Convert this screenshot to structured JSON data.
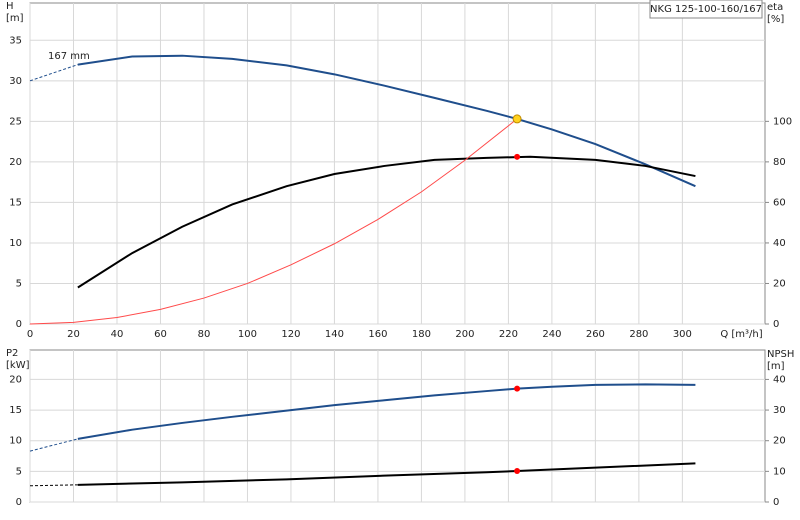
{
  "chart_data": [
    {
      "type": "line",
      "title": "NKG 125-100-160/167",
      "annotation": "167 mm",
      "y_label": [
        "H",
        "[m]"
      ],
      "y2_label": [
        "eta",
        "[%]"
      ],
      "x_label": "Q [m³/h]",
      "xlim": [
        0,
        338
      ],
      "xticks": [
        0,
        20,
        40,
        60,
        80,
        100,
        120,
        140,
        160,
        180,
        200,
        220,
        240,
        260,
        280,
        300
      ],
      "ylim": [
        0,
        39.6
      ],
      "yticks": [
        0,
        5,
        10,
        15,
        20,
        25,
        30,
        35
      ],
      "y2lim": [
        0,
        158.4
      ],
      "y2ticks": [
        0,
        20,
        40,
        60,
        80,
        100
      ],
      "grid": true,
      "series": [
        {
          "color": "#1f4e8c",
          "dash": true,
          "width": 1,
          "x": [
            0,
            22
          ],
          "values": [
            30.0,
            32.0
          ]
        },
        {
          "color": "#1f4e8c",
          "width": 2,
          "x": [
            22,
            47,
            70,
            93,
            118,
            140,
            163,
            186,
            210,
            224,
            240,
            260,
            283,
            306
          ],
          "values": [
            32.0,
            33.0,
            33.1,
            32.7,
            31.9,
            30.8,
            29.4,
            27.9,
            26.3,
            25.3,
            24.0,
            22.2,
            19.7,
            17.0
          ]
        },
        {
          "color": "#000000",
          "width": 2,
          "axis": "y2",
          "x": [
            22,
            47,
            70,
            93,
            118,
            140,
            163,
            186,
            210,
            230,
            260,
            283,
            306
          ],
          "values": [
            18,
            35,
            48,
            59,
            68,
            74,
            78,
            81,
            82,
            82.5,
            81,
            78,
            73
          ]
        },
        {
          "color": "#ff4a4a",
          "width": 1,
          "x": [
            0,
            20,
            40,
            60,
            80,
            100,
            120,
            140,
            160,
            180,
            200,
            224
          ],
          "values": [
            0,
            0.2,
            0.8,
            1.8,
            3.2,
            5.0,
            7.3,
            9.9,
            12.9,
            16.3,
            20.2,
            25.3
          ]
        }
      ],
      "markers": [
        {
          "x": 224,
          "y": 25.3,
          "color": "#ffd21f"
        },
        {
          "x": 224,
          "y": 82.5,
          "axis": "y2",
          "color": "#ff0000"
        }
      ]
    },
    {
      "type": "line",
      "y_label": [
        "P2",
        "[kW]"
      ],
      "y2_label": [
        "NPSH",
        "[m]"
      ],
      "xlim": [
        0,
        338
      ],
      "xticks": [
        0,
        20,
        40,
        60,
        80,
        100,
        120,
        140,
        160,
        180,
        200,
        220,
        240,
        260,
        280,
        300
      ],
      "ylim": [
        0,
        24.8
      ],
      "yticks": [
        0,
        5,
        10,
        15,
        20
      ],
      "y2lim": [
        0,
        49.6
      ],
      "y2ticks": [
        0,
        10,
        20,
        30,
        40
      ],
      "grid": true,
      "series": [
        {
          "color": "#1f4e8c",
          "dash": true,
          "width": 1,
          "x": [
            0,
            22
          ],
          "values": [
            8.3,
            10.3
          ]
        },
        {
          "color": "#1f4e8c",
          "width": 2,
          "x": [
            22,
            47,
            70,
            93,
            118,
            140,
            163,
            186,
            210,
            224,
            240,
            260,
            283,
            306
          ],
          "values": [
            10.3,
            11.8,
            12.9,
            13.9,
            14.9,
            15.8,
            16.6,
            17.4,
            18.1,
            18.5,
            18.8,
            19.1,
            19.2,
            19.1
          ]
        },
        {
          "color": "#000000",
          "dash": true,
          "width": 1,
          "axis": "y2",
          "x": [
            0,
            22
          ],
          "values": [
            5.3,
            5.6
          ]
        },
        {
          "color": "#000000",
          "width": 2,
          "axis": "y2",
          "x": [
            22,
            70,
            118,
            163,
            210,
            224,
            260,
            306
          ],
          "values": [
            5.6,
            6.4,
            7.4,
            8.6,
            9.7,
            10.1,
            11.2,
            12.6
          ]
        }
      ],
      "markers": [
        {
          "x": 224,
          "y": 18.5,
          "color": "#ff0000"
        },
        {
          "x": 224,
          "y": 10.1,
          "axis": "y2",
          "color": "#ff0000"
        }
      ]
    }
  ]
}
